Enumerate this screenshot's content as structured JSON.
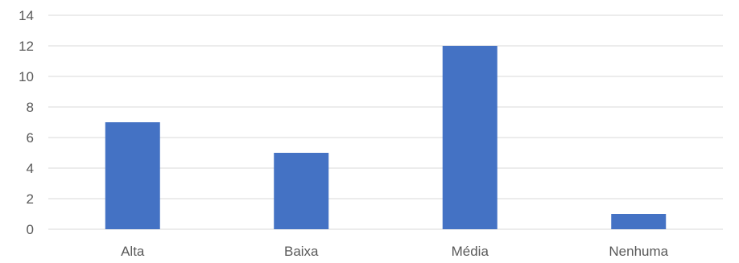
{
  "chart_data": {
    "type": "bar",
    "categories": [
      "Alta",
      "Baixa",
      "Média",
      "Nenhuma"
    ],
    "values": [
      7,
      5,
      12,
      1
    ],
    "title": "",
    "xlabel": "",
    "ylabel": "",
    "ylim": [
      0,
      14
    ],
    "yticks": [
      0,
      2,
      4,
      6,
      8,
      10,
      12,
      14
    ],
    "grid": true,
    "legend": "none",
    "colors": {
      "bar": "#4472C4",
      "grid": "#D9D9D9",
      "text": "#595959"
    }
  }
}
